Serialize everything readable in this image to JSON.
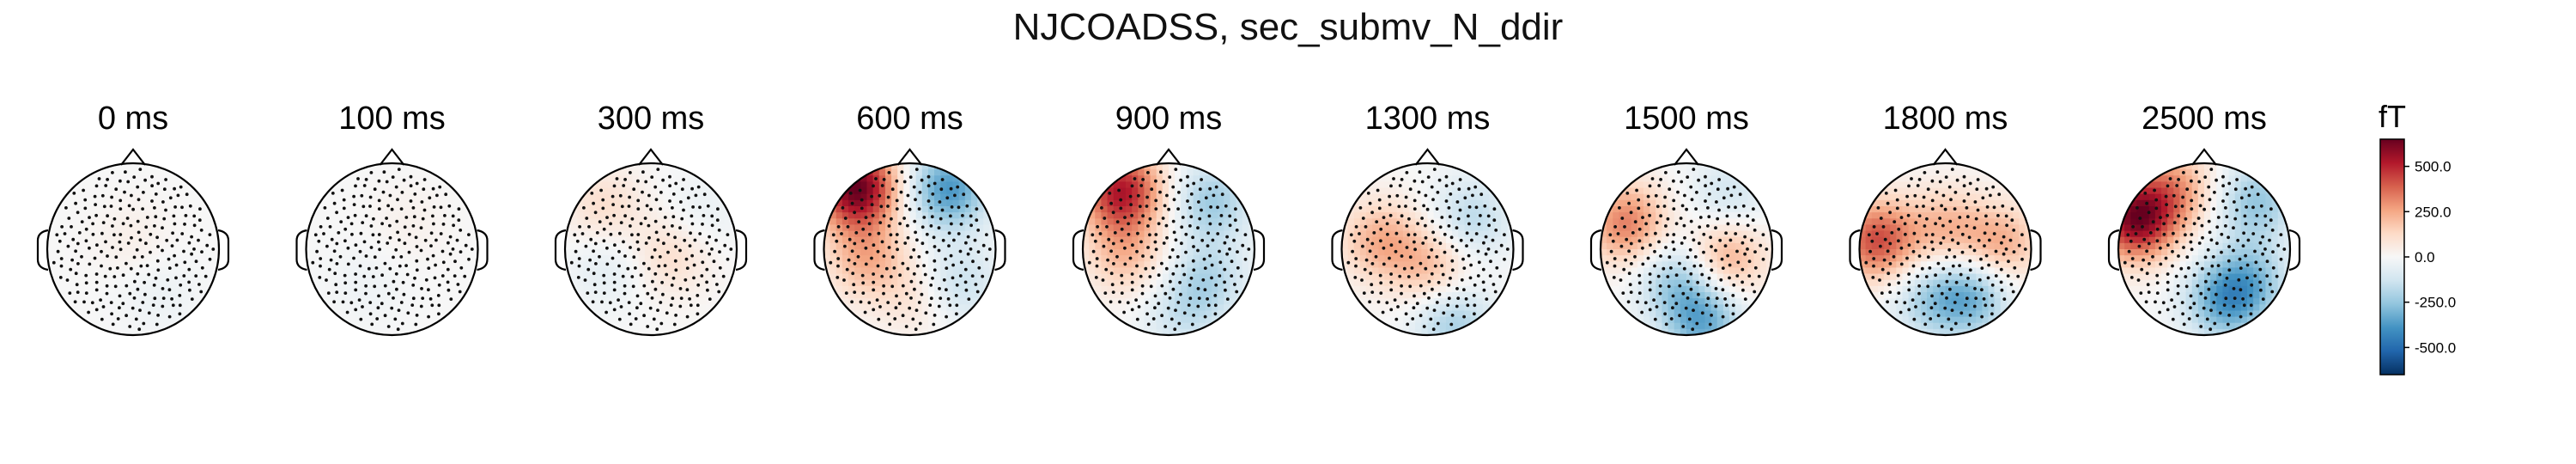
{
  "figure": {
    "title": "NJCOADSS, sec_submv_N_ddir"
  },
  "chart_data": {
    "type": "heatmap",
    "title": "NJCOADSS, sec_submv_N_ddir",
    "panels": [
      {
        "time_label": "0 ms",
        "poles": [
          {
            "x": 0.0,
            "y": 0.1,
            "v": 40
          },
          {
            "x": 0.3,
            "y": -0.5,
            "v": -40
          }
        ]
      },
      {
        "time_label": "100 ms",
        "poles": [
          {
            "x": 0.2,
            "y": 0.3,
            "v": 30
          },
          {
            "x": -0.3,
            "y": -0.4,
            "v": -30
          }
        ]
      },
      {
        "time_label": "300 ms",
        "poles": [
          {
            "x": -0.55,
            "y": 0.5,
            "v": 110
          },
          {
            "x": 0.25,
            "y": -0.05,
            "v": 120
          },
          {
            "x": -0.5,
            "y": -0.2,
            "v": -70
          },
          {
            "x": 0.55,
            "y": 0.35,
            "v": -60
          }
        ]
      },
      {
        "time_label": "600 ms",
        "poles": [
          {
            "x": -0.62,
            "y": 0.72,
            "v": 650
          },
          {
            "x": 0.45,
            "y": 0.7,
            "v": -380
          },
          {
            "x": -0.5,
            "y": -0.1,
            "v": 230
          },
          {
            "x": 0.55,
            "y": -0.4,
            "v": -160
          },
          {
            "x": 0.1,
            "y": -0.55,
            "v": 100
          }
        ]
      },
      {
        "time_label": "900 ms",
        "poles": [
          {
            "x": -0.55,
            "y": 0.68,
            "v": 520
          },
          {
            "x": 0.5,
            "y": 0.55,
            "v": -230
          },
          {
            "x": -0.5,
            "y": -0.05,
            "v": 200
          },
          {
            "x": 0.45,
            "y": -0.35,
            "v": -180
          },
          {
            "x": 0.15,
            "y": -0.8,
            "v": -120
          }
        ]
      },
      {
        "time_label": "1300 ms",
        "poles": [
          {
            "x": -0.55,
            "y": 0.1,
            "v": 230
          },
          {
            "x": 0.05,
            "y": -0.2,
            "v": 200
          },
          {
            "x": 0.5,
            "y": 0.35,
            "v": -180
          },
          {
            "x": 0.3,
            "y": -0.85,
            "v": -220
          }
        ]
      },
      {
        "time_label": "1500 ms",
        "poles": [
          {
            "x": -0.7,
            "y": 0.3,
            "v": 330
          },
          {
            "x": 0.45,
            "y": -0.1,
            "v": 260
          },
          {
            "x": -0.1,
            "y": -0.35,
            "v": -230
          },
          {
            "x": 0.2,
            "y": -0.85,
            "v": -320
          },
          {
            "x": 0.5,
            "y": 0.6,
            "v": -130
          }
        ]
      },
      {
        "time_label": "1800 ms",
        "poles": [
          {
            "x": -0.8,
            "y": 0.1,
            "v": 420
          },
          {
            "x": 0.0,
            "y": 0.25,
            "v": 200
          },
          {
            "x": 0.65,
            "y": 0.05,
            "v": 240
          },
          {
            "x": 0.3,
            "y": -0.55,
            "v": -300
          },
          {
            "x": -0.2,
            "y": -0.6,
            "v": -180
          }
        ]
      },
      {
        "time_label": "2500 ms",
        "poles": [
          {
            "x": -0.8,
            "y": 0.35,
            "v": 600
          },
          {
            "x": -0.35,
            "y": 0.7,
            "v": 250
          },
          {
            "x": 0.6,
            "y": 0.55,
            "v": -250
          },
          {
            "x": 0.25,
            "y": -0.6,
            "v": -330
          },
          {
            "x": 0.55,
            "y": -0.35,
            "v": -200
          }
        ]
      }
    ],
    "colorbar": {
      "unit": "fT",
      "range": [
        -650,
        650
      ],
      "ticks": [
        {
          "value": 500,
          "label": "500.0"
        },
        {
          "value": 250,
          "label": "250.0"
        },
        {
          "value": 0,
          "label": "0.0"
        },
        {
          "value": -250,
          "label": "-250.0"
        },
        {
          "value": -500,
          "label": "-500.0"
        }
      ],
      "colors": [
        "#053061",
        "#2166ac",
        "#4393c3",
        "#92c5de",
        "#d1e5f0",
        "#f7f7f7",
        "#fddbc7",
        "#f4a582",
        "#d6604d",
        "#b2182b",
        "#67001f"
      ]
    },
    "sensors_shown": true,
    "contours_shown": true
  }
}
